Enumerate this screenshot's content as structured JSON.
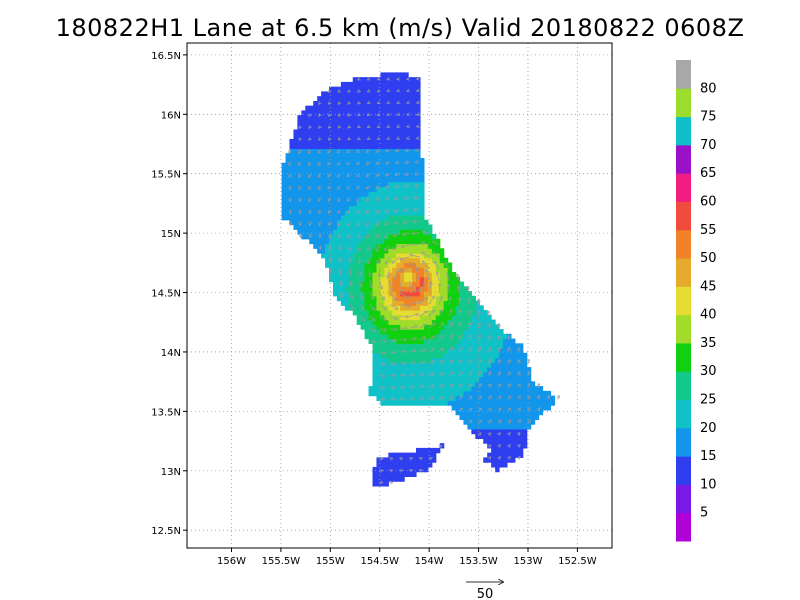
{
  "title": "180822H1 Lane at 6.5 km (m/s) Valid 20180822 0608Z",
  "chart_data": {
    "type": "heatmap",
    "title": "180822H1 Lane at 6.5 km (m/s) Valid 20180822 0608Z",
    "xlabel": "",
    "ylabel": "",
    "xlim": [
      -156.45,
      -152.15
    ],
    "ylim": [
      12.35,
      16.6
    ],
    "x_ticks": [
      -156,
      -155.5,
      -155,
      -154.5,
      -154,
      -153.5,
      -153,
      -152.5
    ],
    "x_tick_labels": [
      "156W",
      "155.5W",
      "155W",
      "154.5W",
      "154W",
      "153.5W",
      "153W",
      "152.5W"
    ],
    "y_ticks": [
      12.5,
      13,
      13.5,
      14,
      14.5,
      15,
      15.5,
      16,
      16.5
    ],
    "y_tick_labels": [
      "12.5N",
      "13N",
      "13.5N",
      "14N",
      "14.5N",
      "15N",
      "15.5N",
      "16N",
      "16.5N"
    ],
    "grid": true,
    "storm_center": {
      "lon": -154.2,
      "lat": 14.6
    },
    "max_wind_ms": 55,
    "wind_vector_reference": {
      "speed": 50,
      "label": "50"
    },
    "colorbar": {
      "levels": [
        0,
        5,
        10,
        15,
        20,
        25,
        30,
        35,
        40,
        45,
        50,
        55,
        60,
        65,
        70,
        75,
        80,
        85
      ],
      "labels": [
        "5",
        "10",
        "15",
        "20",
        "25",
        "30",
        "35",
        "40",
        "45",
        "50",
        "55",
        "60",
        "65",
        "70",
        "75",
        "80"
      ],
      "colors": [
        "#b000d8",
        "#7a18e8",
        "#2f3ff0",
        "#1296ec",
        "#10c2c8",
        "#12c88a",
        "#10d010",
        "#a2dc2a",
        "#e6dc32",
        "#e6aa2c",
        "#f08228",
        "#f04b3c",
        "#f01e82",
        "#9a12c8",
        "#10c0c8",
        "#9cdc2c",
        "#a8a8a8"
      ]
    }
  }
}
